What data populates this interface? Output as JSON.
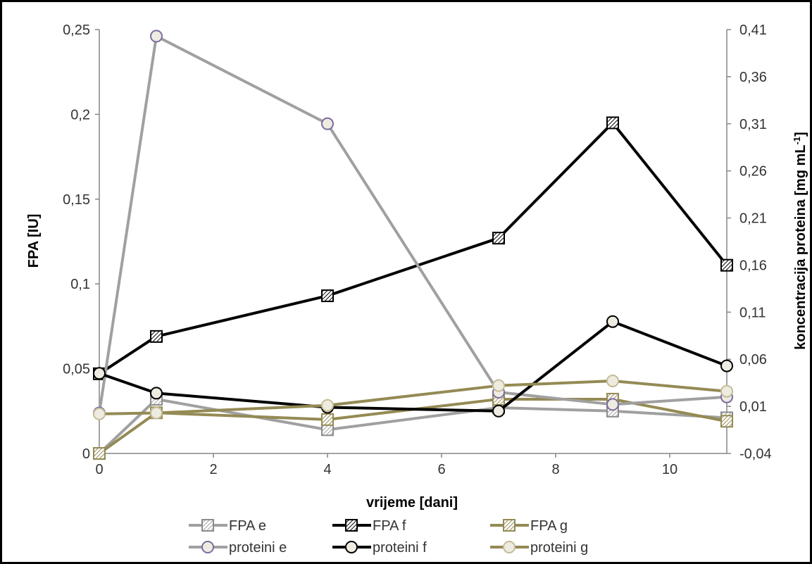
{
  "chart_data": {
    "type": "line",
    "xlabel": "vrijeme [dani]",
    "ylabel": "FPA [IU]",
    "y2label": "koncentracija proteina [mg mL",
    "y2label_sup": "-1",
    "y2label_end": "]",
    "xlim": [
      0,
      11
    ],
    "ylim": [
      0,
      0.25
    ],
    "y2lim": [
      -0.04,
      0.41
    ],
    "x_ticks": [
      "0",
      "2",
      "4",
      "6",
      "8",
      "10"
    ],
    "y_ticks": [
      "0",
      "0,05",
      "0,1",
      "0,15",
      "0,2",
      "0,25"
    ],
    "y2_ticks": [
      "-0,04",
      "0,01",
      "0,06",
      "0,11",
      "0,16",
      "0,21",
      "0,26",
      "0,31",
      "0,36",
      "0,41"
    ],
    "grid": false,
    "legend_position": "bottom",
    "series": [
      {
        "name": "FPA e",
        "axis": "left",
        "marker": "square-hatch",
        "color": "#a0a0a0",
        "x": [
          0,
          1,
          4,
          7,
          9,
          11
        ],
        "y": [
          0,
          0.032,
          0.014,
          0.027,
          0.025,
          0.021
        ]
      },
      {
        "name": "FPA f",
        "axis": "left",
        "marker": "square-hatch",
        "color": "#000000",
        "x": [
          0,
          1,
          4,
          7,
          9,
          11
        ],
        "y": [
          0.047,
          0.069,
          0.093,
          0.127,
          0.195,
          0.111
        ]
      },
      {
        "name": "FPA g",
        "axis": "left",
        "marker": "square-hatch",
        "color": "#948a54",
        "x": [
          0,
          1,
          4,
          7,
          9,
          11
        ],
        "y": [
          0,
          0.024,
          0.02,
          0.032,
          0.032,
          0.019
        ]
      },
      {
        "name": "proteini e",
        "axis": "right",
        "marker": "circle",
        "color": "#a0a0a0",
        "x": [
          0,
          1,
          4,
          7,
          9,
          11
        ],
        "y": [
          0.003,
          0.403,
          0.31,
          0.025,
          0.012,
          0.02
        ]
      },
      {
        "name": "proteini f",
        "axis": "right",
        "marker": "circle",
        "color": "#000000",
        "x": [
          0,
          1,
          4,
          7,
          9,
          11
        ],
        "y": [
          0.045,
          0.024,
          0.009,
          0.005,
          0.1,
          0.053
        ]
      },
      {
        "name": "proteini g",
        "axis": "right",
        "marker": "circle",
        "color": "#948a54",
        "x": [
          0,
          1,
          4,
          7,
          9,
          11
        ],
        "y": [
          0.002,
          0.003,
          0.011,
          0.032,
          0.037,
          0.026
        ]
      }
    ]
  }
}
